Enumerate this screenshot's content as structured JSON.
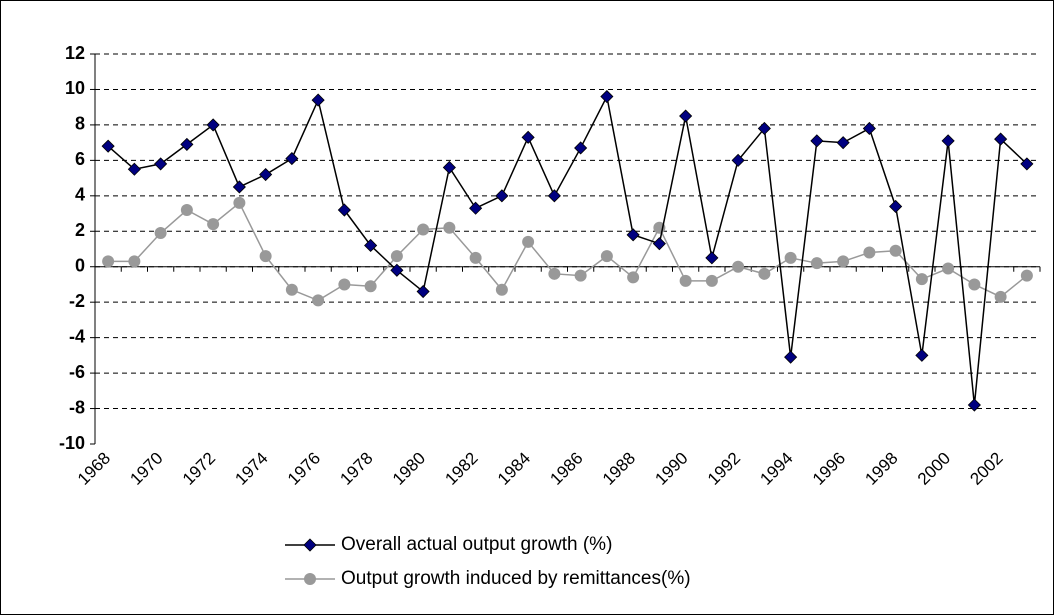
{
  "chart_data": {
    "type": "line",
    "categories": [
      "1968",
      null,
      "1970",
      null,
      "1972",
      null,
      "1974",
      null,
      "1976",
      null,
      "1978",
      null,
      "1980",
      null,
      "1982",
      null,
      "1984",
      null,
      "1986",
      null,
      "1988",
      null,
      "1990",
      null,
      "1992",
      null,
      "1994",
      null,
      "1996",
      null,
      "1998",
      null,
      "2000",
      null,
      "2002",
      null
    ],
    "series": [
      {
        "name": "Overall actual output growth (%)",
        "color": "#000000",
        "marker_color": "#000080",
        "marker": "diamond",
        "values": [
          6.8,
          5.5,
          5.8,
          6.9,
          8.0,
          4.5,
          5.2,
          6.1,
          9.4,
          3.2,
          1.2,
          -0.2,
          -1.4,
          5.6,
          3.3,
          4.0,
          7.3,
          4.0,
          6.7,
          9.6,
          1.8,
          1.3,
          8.5,
          0.5,
          6.0,
          7.8,
          -5.1,
          7.1,
          7.0,
          7.8,
          3.4,
          -5.0,
          7.1,
          -7.8,
          7.2,
          5.8
        ]
      },
      {
        "name": "Output growth induced by remittances(%)",
        "color": "#999999",
        "marker_color": "#999999",
        "marker": "circle",
        "values": [
          0.3,
          0.3,
          1.9,
          3.2,
          2.4,
          3.6,
          0.6,
          -1.3,
          -1.9,
          -1.0,
          -1.1,
          0.6,
          2.1,
          2.2,
          0.5,
          -1.3,
          1.4,
          -0.4,
          -0.5,
          0.6,
          -0.6,
          2.2,
          -0.8,
          -0.8,
          0.0,
          -0.4,
          0.5,
          0.2,
          0.3,
          0.8,
          0.9,
          -0.7,
          -0.1,
          -1.0,
          -1.7,
          -0.5
        ]
      }
    ],
    "ylim": [
      -10,
      12
    ],
    "yticks": [
      -10,
      -8,
      -6,
      -4,
      -2,
      0,
      2,
      4,
      6,
      8,
      10,
      12
    ],
    "grid": true,
    "legend": "bottom"
  }
}
